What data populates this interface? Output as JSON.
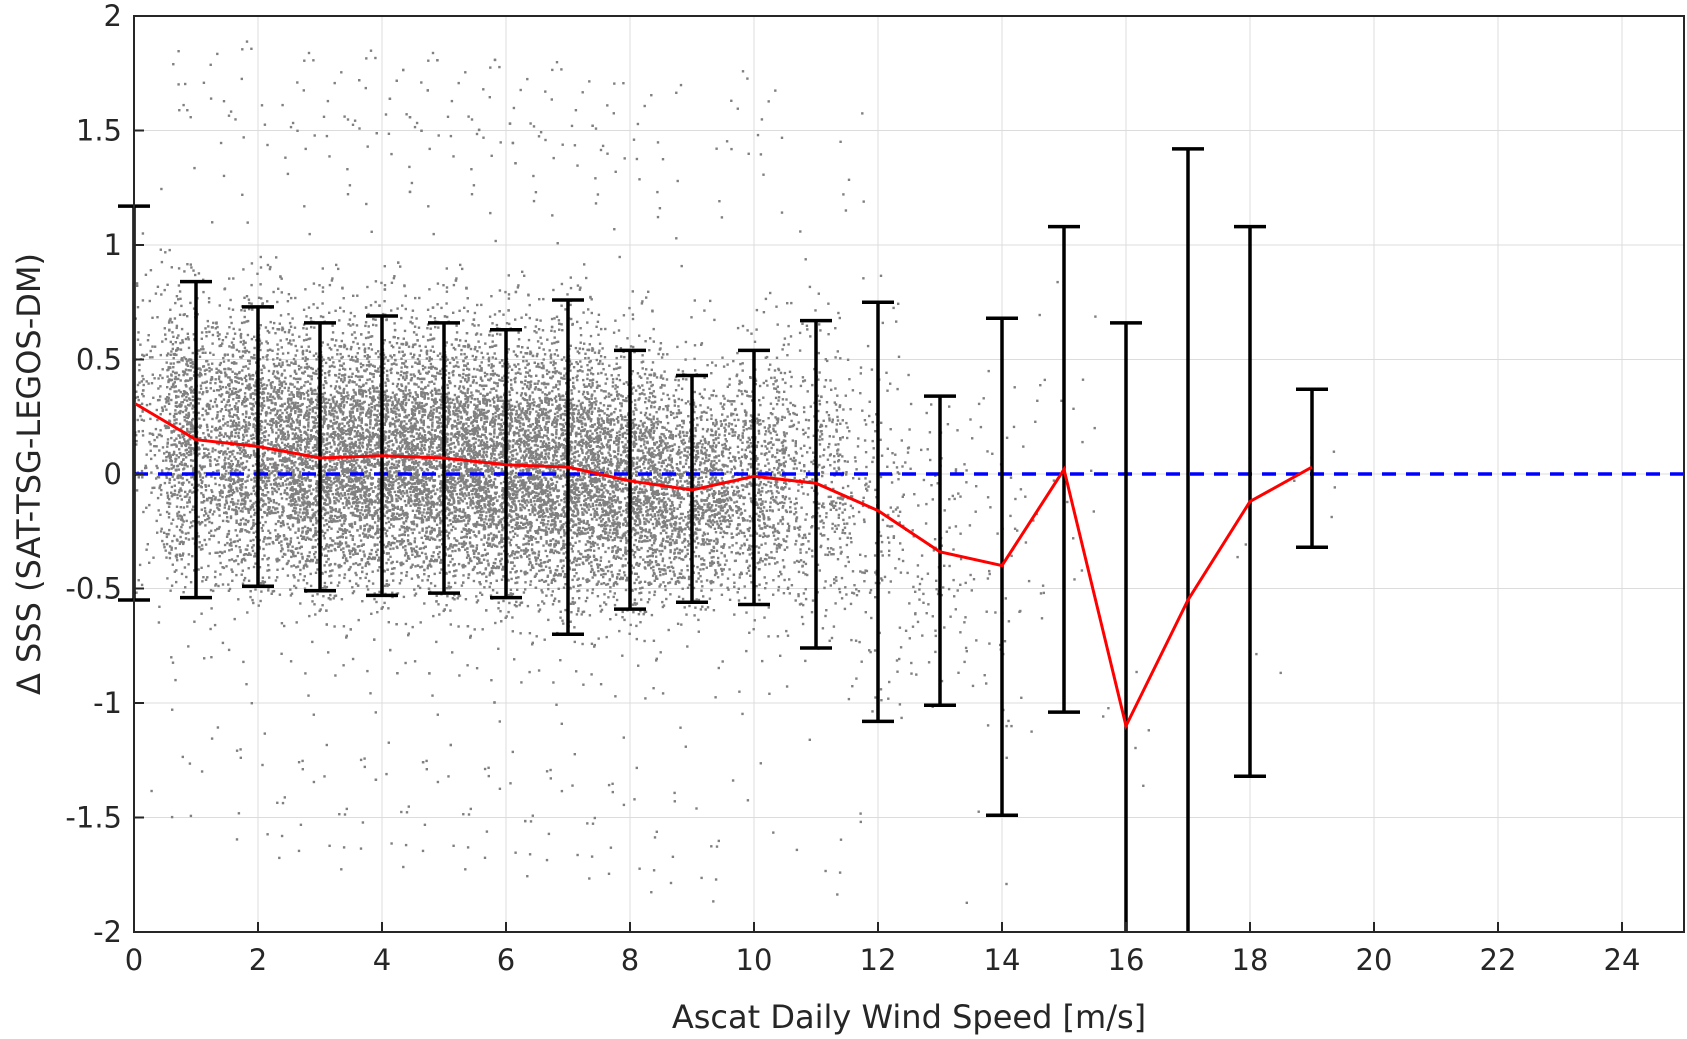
{
  "chart_data": {
    "type": "scatter",
    "xlabel": "Ascat Daily Wind Speed [m/s]",
    "ylabel": "Δ SSS (SAT-TSG-LEGOS-DM)",
    "xlim": [
      0,
      25
    ],
    "ylim": [
      -2,
      2
    ],
    "xticks": [
      0,
      2,
      4,
      6,
      8,
      10,
      12,
      14,
      16,
      18,
      20,
      22,
      24
    ],
    "yticks": [
      -2,
      -1.5,
      -1,
      -0.5,
      0,
      0.5,
      1,
      1.5,
      2
    ],
    "xtick_labels": [
      "0",
      "2",
      "4",
      "6",
      "8",
      "10",
      "12",
      "14",
      "16",
      "18",
      "20",
      "22",
      "24"
    ],
    "ytick_labels": [
      "-2",
      "-1.5",
      "-1",
      "-0.5",
      "0",
      "0.5",
      "1",
      "1.5",
      "2"
    ],
    "grid": true,
    "scatter_color": "#808080",
    "mean_color": "#ff0000",
    "errorbar_color": "#000000",
    "zero_line_color": "#0000ff",
    "zero_line": {
      "y": 0,
      "style": "dashed"
    },
    "mean_series": {
      "x": [
        0,
        1,
        2,
        3,
        4,
        5,
        6,
        7,
        8,
        9,
        10,
        11,
        12,
        13,
        14,
        15,
        16,
        17,
        18,
        19
      ],
      "y": [
        0.31,
        0.15,
        0.12,
        0.07,
        0.08,
        0.07,
        0.04,
        0.03,
        -0.03,
        -0.07,
        -0.01,
        -0.04,
        -0.16,
        -0.34,
        -0.4,
        0.02,
        -1.1,
        -0.55,
        -0.12,
        0.03
      ]
    },
    "error_bars": [
      {
        "x": 0,
        "low": -0.55,
        "high": 1.17
      },
      {
        "x": 1,
        "low": -0.54,
        "high": 0.84
      },
      {
        "x": 2,
        "low": -0.49,
        "high": 0.73
      },
      {
        "x": 3,
        "low": -0.51,
        "high": 0.66
      },
      {
        "x": 4,
        "low": -0.53,
        "high": 0.69
      },
      {
        "x": 5,
        "low": -0.52,
        "high": 0.66
      },
      {
        "x": 6,
        "low": -0.54,
        "high": 0.63
      },
      {
        "x": 7,
        "low": -0.7,
        "high": 0.76
      },
      {
        "x": 8,
        "low": -0.59,
        "high": 0.54
      },
      {
        "x": 9,
        "low": -0.56,
        "high": 0.43
      },
      {
        "x": 10,
        "low": -0.57,
        "high": 0.54
      },
      {
        "x": 11,
        "low": -0.76,
        "high": 0.67
      },
      {
        "x": 12,
        "low": -1.08,
        "high": 0.75
      },
      {
        "x": 13,
        "low": -1.01,
        "high": 0.34
      },
      {
        "x": 14,
        "low": -1.49,
        "high": 0.68
      },
      {
        "x": 15,
        "low": -1.04,
        "high": 1.08
      },
      {
        "x": 16,
        "low": -2.0,
        "high": 0.66
      },
      {
        "x": 17,
        "low": -2.0,
        "high": 1.42
      },
      {
        "x": 18,
        "low": -1.32,
        "high": 1.08
      },
      {
        "x": 19,
        "low": -0.32,
        "high": 0.37
      }
    ],
    "scatter_bins": [
      {
        "x": 0.5,
        "center": 0.25,
        "spread": 0.45,
        "n": 350
      },
      {
        "x": 1,
        "center": 0.15,
        "spread": 0.45,
        "n": 900
      },
      {
        "x": 2,
        "center": 0.12,
        "spread": 0.42,
        "n": 1400
      },
      {
        "x": 3,
        "center": 0.07,
        "spread": 0.4,
        "n": 1800
      },
      {
        "x": 4,
        "center": 0.08,
        "spread": 0.4,
        "n": 2000
      },
      {
        "x": 5,
        "center": 0.07,
        "spread": 0.4,
        "n": 2000
      },
      {
        "x": 6,
        "center": 0.04,
        "spread": 0.4,
        "n": 2000
      },
      {
        "x": 7,
        "center": 0.03,
        "spread": 0.42,
        "n": 1800
      },
      {
        "x": 8,
        "center": -0.03,
        "spread": 0.38,
        "n": 1500
      },
      {
        "x": 9,
        "center": -0.07,
        "spread": 0.34,
        "n": 1100
      },
      {
        "x": 10,
        "center": -0.01,
        "spread": 0.38,
        "n": 800
      },
      {
        "x": 11,
        "center": -0.04,
        "spread": 0.45,
        "n": 450
      },
      {
        "x": 12,
        "center": -0.16,
        "spread": 0.55,
        "n": 200
      },
      {
        "x": 13,
        "center": -0.34,
        "spread": 0.45,
        "n": 110
      },
      {
        "x": 14,
        "center": -0.4,
        "spread": 0.6,
        "n": 60
      },
      {
        "x": 15,
        "center": 0.02,
        "spread": 0.55,
        "n": 25
      },
      {
        "x": 16,
        "center": -1.1,
        "spread": 0.4,
        "n": 6
      },
      {
        "x": 18,
        "center": -0.12,
        "spread": 0.4,
        "n": 6
      },
      {
        "x": 19,
        "center": 0.03,
        "spread": 0.25,
        "n": 5
      }
    ]
  }
}
